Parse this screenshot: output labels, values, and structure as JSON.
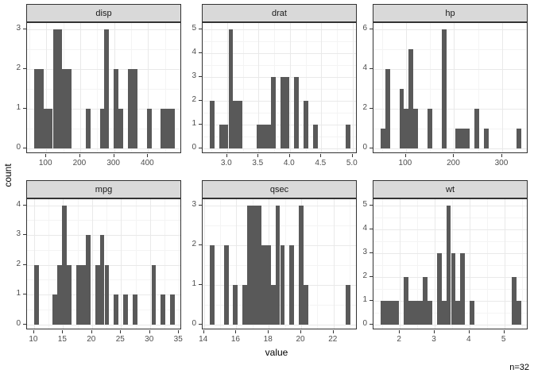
{
  "chart_data": {
    "type": "bar",
    "subtype": "faceted-histograms",
    "title": "",
    "xlabel": "value",
    "ylabel": "count",
    "caption": "n=32",
    "grid": "on",
    "legend": "none",
    "colors": {
      "bar_fill": "#595959",
      "strip_fill": "#d9d9d9",
      "panel_border": "#333333",
      "grid_major": "#e9e9e9",
      "grid_minor": "#f4f4f4",
      "tick_text": "#4d4d4d",
      "tick_mark": "#333333",
      "background": "#ffffff"
    },
    "facets": [
      {
        "label": "disp",
        "x_range": [
          43.45,
          499.65
        ],
        "x_ticks": [
          {
            "v": 100,
            "t": "100"
          },
          {
            "v": 200,
            "t": "200"
          },
          {
            "v": 300,
            "t": "300"
          },
          {
            "v": 400,
            "t": "400"
          }
        ],
        "y_max": 3,
        "y_ticks": [
          {
            "v": 0,
            "t": "0"
          },
          {
            "v": 1,
            "t": "1"
          },
          {
            "v": 2,
            "t": "2"
          },
          {
            "v": 3,
            "t": "3"
          }
        ],
        "bars": [
          {
            "x0": 64.2,
            "x1": 91.8,
            "h": 2
          },
          {
            "x0": 91.8,
            "x1": 119.5,
            "h": 1
          },
          {
            "x0": 119.5,
            "x1": 147.1,
            "h": 3
          },
          {
            "x0": 147.1,
            "x1": 174.8,
            "h": 2
          },
          {
            "x0": 216.3,
            "x1": 230.1,
            "h": 1
          },
          {
            "x0": 257.7,
            "x1": 271.5,
            "h": 1
          },
          {
            "x0": 271.5,
            "x1": 285.4,
            "h": 3
          },
          {
            "x0": 299.2,
            "x1": 313.0,
            "h": 2
          },
          {
            "x0": 313.0,
            "x1": 326.8,
            "h": 1
          },
          {
            "x0": 340.7,
            "x1": 368.3,
            "h": 2
          },
          {
            "x0": 395.9,
            "x1": 409.8,
            "h": 1
          },
          {
            "x0": 437.4,
            "x1": 478.9,
            "h": 1
          }
        ]
      },
      {
        "label": "drat",
        "x_range": [
          2.6104,
          5.0788
        ],
        "x_ticks": [
          {
            "v": 3.0,
            "t": "3.0"
          },
          {
            "v": 3.5,
            "t": "3.5"
          },
          {
            "v": 4.0,
            "t": "4.0"
          },
          {
            "v": 4.5,
            "t": "4.5"
          },
          {
            "v": 5.0,
            "t": "5.0"
          }
        ],
        "y_max": 5,
        "y_ticks": [
          {
            "v": 0,
            "t": "0"
          },
          {
            "v": 1,
            "t": "1"
          },
          {
            "v": 2,
            "t": "2"
          },
          {
            "v": 3,
            "t": "3"
          },
          {
            "v": 4,
            "t": "4"
          },
          {
            "v": 5,
            "t": "5"
          }
        ],
        "bars": [
          {
            "x0": 2.7226,
            "x1": 2.7974,
            "h": 2
          },
          {
            "x0": 2.8722,
            "x1": 3.0218,
            "h": 1
          },
          {
            "x0": 3.0218,
            "x1": 3.0966,
            "h": 5
          },
          {
            "x0": 3.0966,
            "x1": 3.2462,
            "h": 2
          },
          {
            "x0": 3.4706,
            "x1": 3.695,
            "h": 1
          },
          {
            "x0": 3.695,
            "x1": 3.7698,
            "h": 3
          },
          {
            "x0": 3.8446,
            "x1": 3.9942,
            "h": 3
          },
          {
            "x0": 4.069,
            "x1": 4.1438,
            "h": 3
          },
          {
            "x0": 4.2186,
            "x1": 4.2934,
            "h": 2
          },
          {
            "x0": 4.3682,
            "x1": 4.443,
            "h": 1
          },
          {
            "x0": 4.8918,
            "x1": 4.9666,
            "h": 1
          }
        ]
      },
      {
        "label": "hp",
        "x_range": [
          32.48,
          354.54
        ],
        "x_ticks": [
          {
            "v": 100,
            "t": "100"
          },
          {
            "v": 200,
            "t": "200"
          },
          {
            "v": 300,
            "t": "300"
          }
        ],
        "y_max": 6,
        "y_ticks": [
          {
            "v": 0,
            "t": "0"
          },
          {
            "v": 2,
            "t": "2"
          },
          {
            "v": 4,
            "t": "4"
          },
          {
            "v": 6,
            "t": "6"
          }
        ],
        "bars": [
          {
            "x0": 47.12,
            "x1": 56.88,
            "h": 1
          },
          {
            "x0": 56.88,
            "x1": 66.64,
            "h": 4
          },
          {
            "x0": 86.16,
            "x1": 95.92,
            "h": 3
          },
          {
            "x0": 95.92,
            "x1": 105.68,
            "h": 2
          },
          {
            "x0": 105.68,
            "x1": 115.44,
            "h": 5
          },
          {
            "x0": 115.44,
            "x1": 125.2,
            "h": 2
          },
          {
            "x0": 144.72,
            "x1": 154.48,
            "h": 2
          },
          {
            "x0": 174.0,
            "x1": 183.76,
            "h": 6
          },
          {
            "x0": 203.28,
            "x1": 232.55,
            "h": 1
          },
          {
            "x0": 242.31,
            "x1": 252.07,
            "h": 2
          },
          {
            "x0": 261.83,
            "x1": 271.59,
            "h": 1
          },
          {
            "x0": 330.14,
            "x1": 339.9,
            "h": 1
          }
        ]
      },
      {
        "label": "mpg",
        "x_range": [
          8.78,
          35.52
        ],
        "x_ticks": [
          {
            "v": 10,
            "t": "10"
          },
          {
            "v": 15,
            "t": "15"
          },
          {
            "v": 20,
            "t": "20"
          },
          {
            "v": 25,
            "t": "25"
          },
          {
            "v": 30,
            "t": "30"
          },
          {
            "v": 35,
            "t": "35"
          }
        ],
        "y_max": 4,
        "y_ticks": [
          {
            "v": 0,
            "t": "0"
          },
          {
            "v": 1,
            "t": "1"
          },
          {
            "v": 2,
            "t": "2"
          },
          {
            "v": 3,
            "t": "3"
          },
          {
            "v": 4,
            "t": "4"
          }
        ],
        "bars": [
          {
            "x0": 9.995,
            "x1": 10.805,
            "h": 2
          },
          {
            "x0": 13.236,
            "x1": 14.047,
            "h": 1
          },
          {
            "x0": 14.047,
            "x1": 14.857,
            "h": 2
          },
          {
            "x0": 14.857,
            "x1": 15.667,
            "h": 4
          },
          {
            "x0": 15.667,
            "x1": 16.478,
            "h": 2
          },
          {
            "x0": 17.288,
            "x1": 18.909,
            "h": 2
          },
          {
            "x0": 18.909,
            "x1": 19.719,
            "h": 3
          },
          {
            "x0": 20.529,
            "x1": 21.34,
            "h": 2
          },
          {
            "x0": 21.34,
            "x1": 22.15,
            "h": 3
          },
          {
            "x0": 22.15,
            "x1": 22.96,
            "h": 2
          },
          {
            "x0": 23.771,
            "x1": 24.581,
            "h": 1
          },
          {
            "x0": 25.391,
            "x1": 26.202,
            "h": 1
          },
          {
            "x0": 27.012,
            "x1": 27.822,
            "h": 1
          },
          {
            "x0": 30.253,
            "x1": 31.064,
            "h": 2
          },
          {
            "x0": 31.874,
            "x1": 32.684,
            "h": 1
          },
          {
            "x0": 33.495,
            "x1": 34.305,
            "h": 1
          }
        ]
      },
      {
        "label": "qsec",
        "x_range": [
          13.92,
          23.48
        ],
        "x_ticks": [
          {
            "v": 14,
            "t": "14"
          },
          {
            "v": 16,
            "t": "16"
          },
          {
            "v": 18,
            "t": "18"
          },
          {
            "v": 20,
            "t": "20"
          },
          {
            "v": 22,
            "t": "22"
          }
        ],
        "y_max": 3,
        "y_ticks": [
          {
            "v": 0,
            "t": "0"
          },
          {
            "v": 1,
            "t": "1"
          },
          {
            "v": 2,
            "t": "2"
          },
          {
            "v": 3,
            "t": "3"
          }
        ],
        "bars": [
          {
            "x0": 14.355,
            "x1": 14.645,
            "h": 2
          },
          {
            "x0": 15.224,
            "x1": 15.514,
            "h": 2
          },
          {
            "x0": 15.803,
            "x1": 16.093,
            "h": 1
          },
          {
            "x0": 16.383,
            "x1": 16.672,
            "h": 1
          },
          {
            "x0": 16.672,
            "x1": 17.541,
            "h": 3
          },
          {
            "x0": 17.541,
            "x1": 18.121,
            "h": 2
          },
          {
            "x0": 18.121,
            "x1": 18.41,
            "h": 1
          },
          {
            "x0": 18.41,
            "x1": 18.7,
            "h": 3
          },
          {
            "x0": 18.7,
            "x1": 18.99,
            "h": 2
          },
          {
            "x0": 19.279,
            "x1": 19.569,
            "h": 2
          },
          {
            "x0": 19.859,
            "x1": 20.148,
            "h": 3
          },
          {
            "x0": 20.148,
            "x1": 20.438,
            "h": 1
          },
          {
            "x0": 22.755,
            "x1": 23.045,
            "h": 1
          }
        ]
      },
      {
        "label": "wt",
        "x_range": [
          1.2433,
          5.6937
        ],
        "x_ticks": [
          {
            "v": 2,
            "t": "2"
          },
          {
            "v": 3,
            "t": "3"
          },
          {
            "v": 4,
            "t": "4"
          },
          {
            "v": 5,
            "t": "5"
          }
        ],
        "y_max": 5,
        "y_ticks": [
          {
            "v": 0,
            "t": "0"
          },
          {
            "v": 1,
            "t": "1"
          },
          {
            "v": 2,
            "t": "2"
          },
          {
            "v": 3,
            "t": "3"
          },
          {
            "v": 4,
            "t": "4"
          },
          {
            "v": 5,
            "t": "5"
          }
        ],
        "bars": [
          {
            "x0": 1.4456,
            "x1": 1.985,
            "h": 1
          },
          {
            "x0": 2.1199,
            "x1": 2.2547,
            "h": 2
          },
          {
            "x0": 2.2547,
            "x1": 2.6593,
            "h": 1
          },
          {
            "x0": 2.6593,
            "x1": 2.7942,
            "h": 2
          },
          {
            "x0": 2.7942,
            "x1": 2.929,
            "h": 1
          },
          {
            "x0": 3.0639,
            "x1": 3.1988,
            "h": 3
          },
          {
            "x0": 3.1988,
            "x1": 3.3336,
            "h": 1
          },
          {
            "x0": 3.3336,
            "x1": 3.4685,
            "h": 5
          },
          {
            "x0": 3.4685,
            "x1": 3.6034,
            "h": 3
          },
          {
            "x0": 3.6034,
            "x1": 3.7382,
            "h": 1
          },
          {
            "x0": 3.7382,
            "x1": 3.8731,
            "h": 3
          },
          {
            "x0": 4.0079,
            "x1": 4.1428,
            "h": 1
          },
          {
            "x0": 5.2217,
            "x1": 5.3565,
            "h": 2
          },
          {
            "x0": 5.3565,
            "x1": 5.4914,
            "h": 1
          }
        ]
      }
    ]
  }
}
